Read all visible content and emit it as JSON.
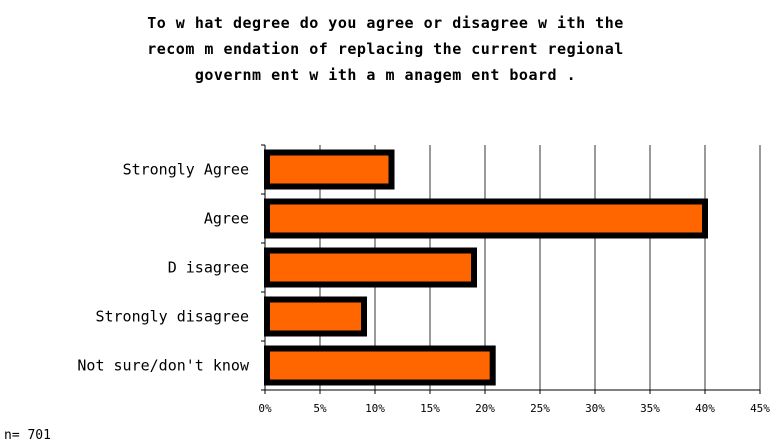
{
  "chart_data": {
    "type": "bar",
    "orientation": "horizontal",
    "title_lines": [
      "To w hat degree do you agree or disagree w ith the",
      "recom m endation of replacing the current regional",
      "governm ent w ith a m anagem ent board ."
    ],
    "categories": [
      "Strongly Agree",
      "Agree",
      "D isagree",
      "Strongly disagree",
      "Not sure/don't know"
    ],
    "values": [
      11.5,
      40,
      19,
      9,
      20.7
    ],
    "unit": "%",
    "xlim": [
      0,
      45
    ],
    "x_ticks": [
      0,
      5,
      10,
      15,
      20,
      25,
      30,
      35,
      40,
      45
    ],
    "x_tick_labels": [
      "0%",
      "5%",
      "10%",
      "15%",
      "20%",
      "25%",
      "30%",
      "35%",
      "40%",
      "45%"
    ],
    "grid": "vertical",
    "legend": "none",
    "bar_fill_color": "#ff6600",
    "bar_border_color": "#000000",
    "grid_color": "#000000"
  },
  "footer": {
    "sample_size": "n= 701"
  }
}
